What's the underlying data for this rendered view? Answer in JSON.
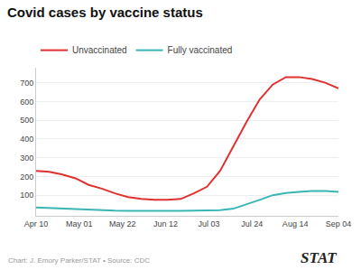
{
  "chart_data": {
    "type": "line",
    "title": "Covid cases by vaccine status",
    "x": [
      0,
      1,
      2,
      3,
      4,
      5,
      6,
      7,
      8,
      9,
      10,
      11,
      12,
      13,
      14,
      15,
      16,
      17,
      18,
      19,
      20,
      21,
      22,
      23
    ],
    "series": [
      {
        "name": "Unvaccinated",
        "color": "#e03030",
        "values": [
          230,
          225,
          210,
          190,
          155,
          135,
          110,
          90,
          80,
          75,
          75,
          80,
          110,
          145,
          230,
          360,
          490,
          610,
          690,
          730,
          730,
          720,
          700,
          670
        ]
      },
      {
        "name": "Fully vaccinated",
        "color": "#3ab5b5",
        "values": [
          35,
          32,
          28,
          25,
          22,
          20,
          18,
          17,
          16,
          16,
          17,
          17,
          17,
          18,
          20,
          28,
          50,
          75,
          100,
          112,
          118,
          122,
          122,
          118
        ]
      }
    ],
    "xlim": [
      0,
      23
    ],
    "xticks": [
      {
        "value": 0,
        "label": "Apr 10"
      },
      {
        "value": 3.2857142857142856,
        "label": "May 01"
      },
      {
        "value": 6.571428571428571,
        "label": "May 22"
      },
      {
        "value": 9.857142857142858,
        "label": "Jun 12"
      },
      {
        "value": 13.142857142857142,
        "label": "Jul 03"
      },
      {
        "value": 16.428571428571427,
        "label": "Jul 24"
      },
      {
        "value": 19.714285714285715,
        "label": "Aug 14"
      },
      {
        "value": 23,
        "label": "Sep 04"
      }
    ],
    "ylim": [
      -10,
      780
    ],
    "yticks": [
      100,
      200,
      300,
      400,
      500,
      600,
      700
    ],
    "grid": true,
    "legend": "top left",
    "annotations": [
      "Chart: J. Emory Parker/STAT • Source: CDC",
      "STAT"
    ]
  }
}
